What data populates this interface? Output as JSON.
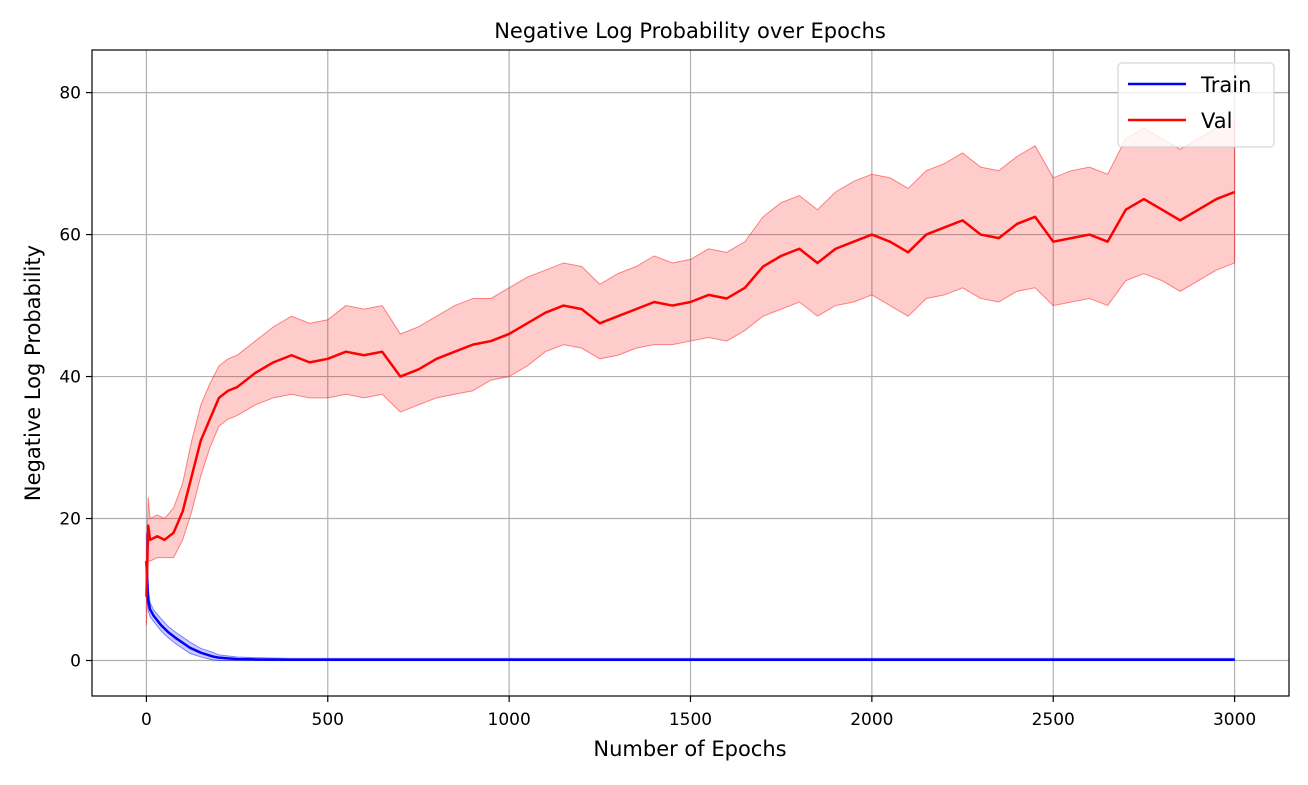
{
  "chart_data": {
    "type": "line",
    "title": "Negative Log Probability over Epochs",
    "xlabel": "Number of Epochs",
    "ylabel": "Negative Log Probability",
    "xlim": [
      -150,
      3150
    ],
    "ylim": [
      -5,
      86
    ],
    "xticks": [
      0,
      500,
      1000,
      1500,
      2000,
      2500,
      3000
    ],
    "yticks": [
      0,
      20,
      40,
      60,
      80
    ],
    "grid": true,
    "legend_position": "top-right",
    "series": [
      {
        "name": "Train",
        "color": "#0000ff",
        "band_color": "#0000ff",
        "x": [
          0,
          5,
          10,
          20,
          40,
          60,
          80,
          100,
          120,
          150,
          180,
          200,
          250,
          300,
          400,
          500,
          700,
          1000,
          1500,
          2000,
          2500,
          3000
        ],
        "mean": [
          14,
          8.5,
          7.2,
          6.3,
          5.0,
          4.0,
          3.2,
          2.5,
          1.8,
          1.1,
          0.6,
          0.4,
          0.2,
          0.15,
          0.1,
          0.1,
          0.1,
          0.1,
          0.1,
          0.1,
          0.1,
          0.1
        ],
        "lower": [
          9,
          7.0,
          6.2,
          5.5,
          4.2,
          3.2,
          2.4,
          1.7,
          1.0,
          0.5,
          0.1,
          0.0,
          0.0,
          0.0,
          0.0,
          0.0,
          0.0,
          0.0,
          0.0,
          0.0,
          0.0,
          0.0
        ],
        "upper": [
          18,
          10.0,
          8.2,
          7.1,
          5.9,
          4.8,
          4.0,
          3.3,
          2.6,
          1.7,
          1.2,
          0.8,
          0.5,
          0.4,
          0.3,
          0.3,
          0.3,
          0.3,
          0.3,
          0.3,
          0.3,
          0.3
        ]
      },
      {
        "name": "Val",
        "color": "#ff0000",
        "band_color": "#ff0000",
        "x": [
          0,
          5,
          10,
          30,
          50,
          75,
          100,
          125,
          150,
          175,
          200,
          225,
          250,
          300,
          350,
          400,
          450,
          500,
          550,
          600,
          650,
          700,
          750,
          800,
          850,
          900,
          950,
          1000,
          1050,
          1100,
          1150,
          1200,
          1250,
          1300,
          1350,
          1400,
          1450,
          1500,
          1550,
          1600,
          1650,
          1700,
          1750,
          1800,
          1850,
          1900,
          1950,
          2000,
          2050,
          2100,
          2150,
          2200,
          2250,
          2300,
          2350,
          2400,
          2450,
          2500,
          2550,
          2600,
          2650,
          2700,
          2750,
          2800,
          2850,
          2900,
          2950,
          3000
        ],
        "mean": [
          9,
          19,
          17,
          17.5,
          17,
          18,
          21,
          26,
          31,
          34,
          37,
          38,
          38.5,
          40.5,
          42,
          43,
          42,
          42.5,
          43.5,
          43,
          43.5,
          40,
          41,
          42.5,
          43.5,
          44.5,
          45,
          46,
          47.5,
          49,
          50,
          49.5,
          47.5,
          48.5,
          49.5,
          50.5,
          50,
          50.5,
          51.5,
          51,
          52.5,
          55.5,
          57,
          58,
          56,
          58,
          59,
          60,
          59,
          57.5,
          60,
          61,
          62,
          60,
          59.5,
          61.5,
          62.5,
          59,
          59.5,
          60,
          59,
          63.5,
          65,
          63.5,
          62,
          63.5,
          65,
          66
        ],
        "lower": [
          5,
          14,
          14,
          14.5,
          14.5,
          14.5,
          17,
          21,
          26,
          30,
          33,
          34,
          34.5,
          36,
          37,
          37.5,
          37,
          37,
          37.5,
          37,
          37.5,
          35,
          36,
          37,
          37.5,
          38,
          39.5,
          40,
          41.5,
          43.5,
          44.5,
          44,
          42.5,
          43,
          44,
          44.5,
          44.5,
          45,
          45.5,
          45,
          46.5,
          48.5,
          49.5,
          50.5,
          48.5,
          50,
          50.5,
          51.5,
          50,
          48.5,
          51,
          51.5,
          52.5,
          51,
          50.5,
          52,
          52.5,
          50,
          50.5,
          51,
          50,
          53.5,
          54.5,
          53.5,
          52,
          53.5,
          55,
          56
        ],
        "upper": [
          13,
          23,
          20,
          20.5,
          20,
          21.5,
          25,
          31,
          36,
          39,
          41.5,
          42.5,
          43,
          45,
          47,
          48.5,
          47.5,
          48,
          50,
          49.5,
          50,
          46,
          47,
          48.5,
          50,
          51,
          51,
          52.5,
          54,
          55,
          56,
          55.5,
          53,
          54.5,
          55.5,
          57,
          56,
          56.5,
          58,
          57.5,
          59,
          62.5,
          64.5,
          65.5,
          63.5,
          66,
          67.5,
          68.5,
          68,
          66.5,
          69,
          70,
          71.5,
          69.5,
          69,
          71,
          72.5,
          68,
          69,
          69.5,
          68.5,
          73.5,
          75,
          73.5,
          72,
          73.5,
          75,
          76
        ]
      }
    ]
  }
}
